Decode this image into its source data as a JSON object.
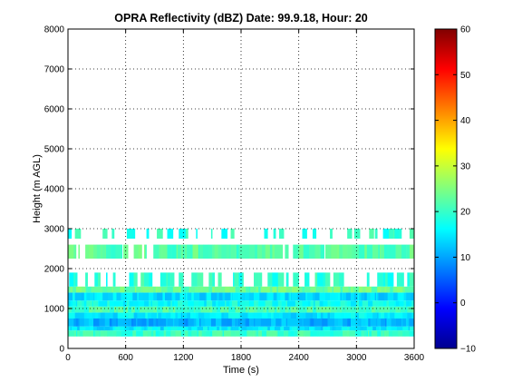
{
  "chart_data": {
    "type": "heatmap",
    "title": "OPRA Reflectivity (dBZ)  Date: 99.9.18, Hour: 20",
    "xlabel": "Time (s)",
    "ylabel": "Height (m AGL)",
    "xlim": [
      0,
      3600
    ],
    "ylim": [
      0,
      8000
    ],
    "x_ticks": [
      0,
      600,
      1200,
      1800,
      2400,
      3000,
      3600
    ],
    "y_ticks": [
      0,
      1000,
      2000,
      3000,
      4000,
      5000,
      6000,
      7000,
      8000
    ],
    "grid": true,
    "colormap": "jet",
    "colorbar": {
      "range": [
        -10,
        60
      ],
      "ticks": [
        -10,
        0,
        10,
        20,
        30,
        40,
        50,
        60
      ]
    },
    "layers": [
      {
        "height_range": [
          300,
          450
        ],
        "dbz": 20,
        "coverage": "full"
      },
      {
        "height_range": [
          450,
          550
        ],
        "dbz": 15,
        "coverage": "full"
      },
      {
        "height_range": [
          550,
          750
        ],
        "dbz": 11,
        "coverage": "full"
      },
      {
        "height_range": [
          750,
          900
        ],
        "dbz": 15,
        "coverage": "full"
      },
      {
        "height_range": [
          900,
          1050
        ],
        "dbz": 21,
        "coverage": "full"
      },
      {
        "height_range": [
          1050,
          1200
        ],
        "dbz": 17,
        "coverage": "full"
      },
      {
        "height_range": [
          1200,
          1400
        ],
        "dbz": 14,
        "coverage": "full"
      },
      {
        "height_range": [
          1400,
          1550
        ],
        "dbz": 23,
        "coverage": "full"
      },
      {
        "height_range": [
          1550,
          1900
        ],
        "dbz": 19,
        "coverage": "intermittent"
      },
      {
        "height_range": [
          2250,
          2600
        ],
        "dbz": 22,
        "coverage": "mostly"
      },
      {
        "height_range": [
          2750,
          3000
        ],
        "dbz": 19,
        "coverage": "sparse"
      }
    ]
  }
}
